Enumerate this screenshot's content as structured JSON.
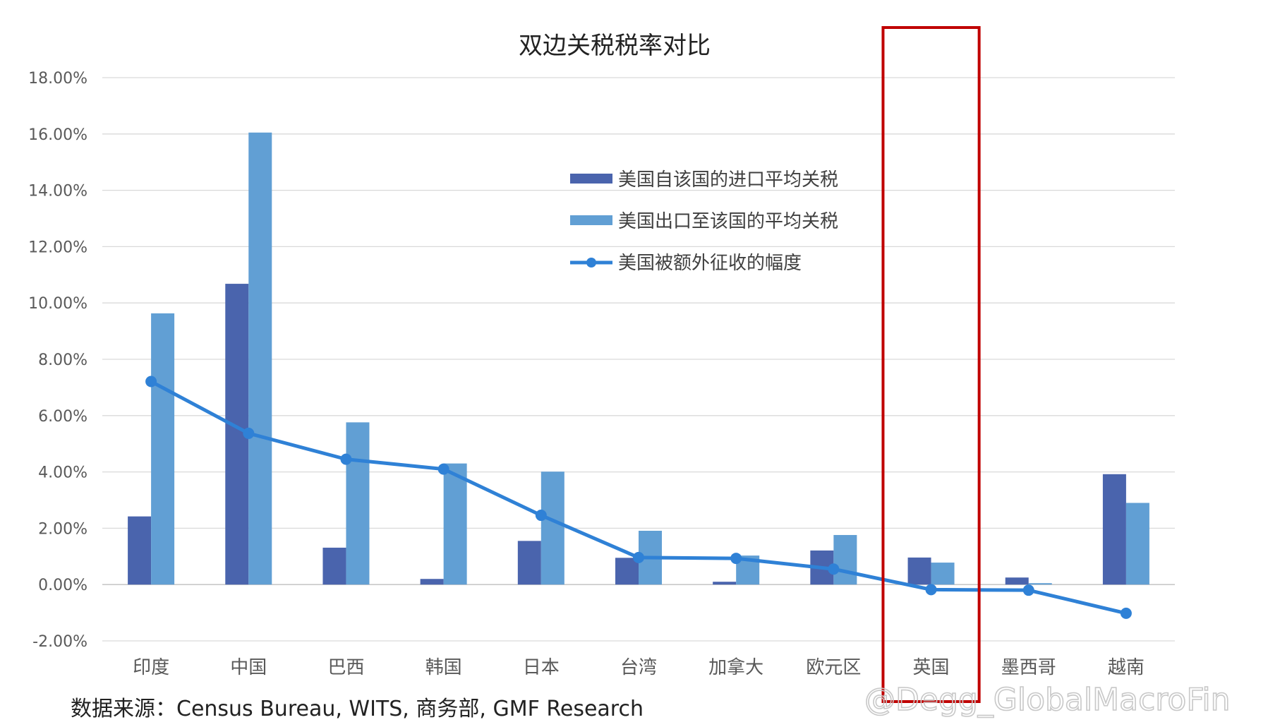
{
  "chart_data": {
    "type": "bar",
    "title": "双边关税税率对比",
    "categories": [
      "印度",
      "中国",
      "巴西",
      "韩国",
      "日本",
      "台湾",
      "加拿大",
      "欧元区",
      "英国",
      "墨西哥",
      "越南"
    ],
    "series": [
      {
        "name": "美国自该国的进口平均关税",
        "type": "bar",
        "color": "#4a64ad",
        "values": [
          2.42,
          10.68,
          1.31,
          0.2,
          1.55,
          0.95,
          0.1,
          1.21,
          0.96,
          0.25,
          3.92
        ]
      },
      {
        "name": "美国出口至该国的平均关税",
        "type": "bar",
        "color": "#619fd4",
        "values": [
          9.63,
          16.05,
          5.76,
          4.3,
          4.01,
          1.91,
          1.03,
          1.76,
          0.78,
          0.05,
          2.9
        ]
      },
      {
        "name": "美国被额外征收的幅度",
        "type": "line",
        "color": "#2f81d6",
        "values": [
          7.21,
          5.37,
          4.45,
          4.1,
          2.46,
          0.96,
          0.93,
          0.55,
          -0.18,
          -0.2,
          -1.02
        ]
      }
    ],
    "ylim": [
      -2,
      18
    ],
    "yticks": [
      "-2.00%",
      "0.00%",
      "2.00%",
      "4.00%",
      "6.00%",
      "8.00%",
      "10.00%",
      "12.00%",
      "14.00%",
      "16.00%",
      "18.00%"
    ],
    "grid": true,
    "legend_position": "upper-center",
    "highlight": {
      "category": "英国",
      "color": "#c00000"
    }
  },
  "source": "数据来源：Census Bureau, WITS, 商务部,  GMF Research",
  "watermark": "@Degg_GlobalMacroFin"
}
